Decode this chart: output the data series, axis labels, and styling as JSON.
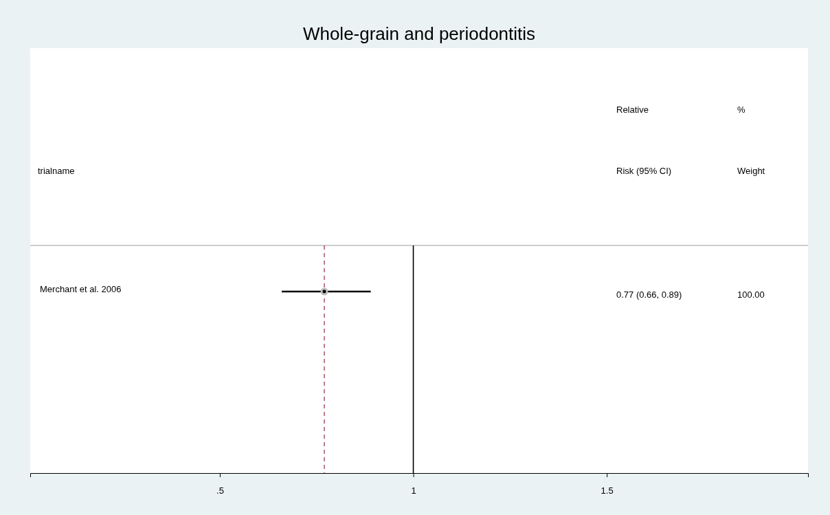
{
  "chart_data": {
    "type": "scatter",
    "orientation": "horizontal",
    "title": "Whole-grain and periodontitis",
    "categories": [
      "Merchant et al. 2006"
    ],
    "series": [
      {
        "color": "#000000",
        "values": [
          0.77
        ],
        "errors": [
          [
            0.66,
            0.89
          ]
        ]
      }
    ],
    "xlim": [
      0.01,
      2.02
    ],
    "xticks": [
      {
        "value": 0.5,
        "label": ".5"
      },
      1,
      1.5
    ],
    "ref_lines": [
      {
        "axis": "x",
        "value": 1,
        "color": "#000000",
        "line_style": "solid"
      },
      {
        "axis": "x",
        "value": 0.77,
        "color": "#a0394a",
        "line_style": "dashed"
      }
    ],
    "annotations": [
      "trialname",
      "Relative\nRisk (95% CI)",
      "%\nWeight",
      "0.77 (0.66, 0.89)",
      "100.00"
    ],
    "marker": "circle",
    "grid": false
  }
}
